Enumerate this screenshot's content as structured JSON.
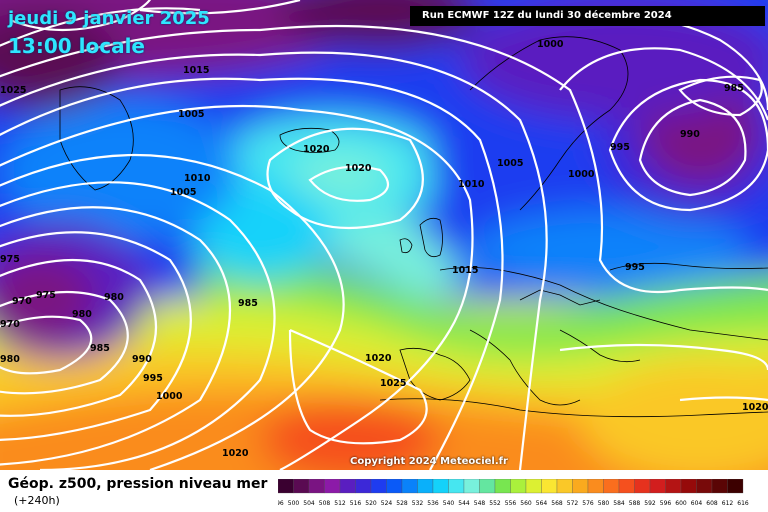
{
  "header": {
    "date_title": "jeudi 9 janvier 2025",
    "time_title": "13:00 locale",
    "run_info": "Run ECMWF 12Z du lundi 30 décembre 2024"
  },
  "footer": {
    "copyright": "Copyright 2024 Meteociel.fr",
    "legend_title": "Géop. z500, pression niveau mer",
    "legend_subtitle": "(+240h)"
  },
  "colorbar": {
    "ticks": [
      "496",
      "500",
      "504",
      "508",
      "512",
      "516",
      "520",
      "524",
      "528",
      "532",
      "536",
      "540",
      "544",
      "548",
      "552",
      "556",
      "560",
      "564",
      "568",
      "572",
      "576",
      "580",
      "584",
      "588",
      "592",
      "596",
      "600",
      "604",
      "608",
      "612",
      "616"
    ],
    "colors": [
      "#3a0030",
      "#5a0a52",
      "#7a1482",
      "#8c1aa8",
      "#5a1ec0",
      "#3c28d8",
      "#1e3cf0",
      "#0a5af8",
      "#0a82fa",
      "#0ab0fa",
      "#14d2fa",
      "#46e6f0",
      "#78f0dc",
      "#64e6a0",
      "#78e650",
      "#aaf03c",
      "#dcf032",
      "#fae632",
      "#fac828",
      "#faaa1e",
      "#fa8c1e",
      "#fa6e1e",
      "#f5501e",
      "#e6321e",
      "#d21e1e",
      "#b41414",
      "#960a0a",
      "#780a0a",
      "#5a0505",
      "#3c0000"
    ]
  },
  "isobar_labels": [
    "1025",
    "1015",
    "1005",
    "1005",
    "1010",
    "1020",
    "1020",
    "1010",
    "1005",
    "1000",
    "1000",
    "995",
    "990",
    "985",
    "995",
    "975",
    "970",
    "975",
    "980",
    "970",
    "980",
    "985",
    "980",
    "990",
    "995",
    "985",
    "1000",
    "1020",
    "1025",
    "1015",
    "1020",
    "1020"
  ]
}
